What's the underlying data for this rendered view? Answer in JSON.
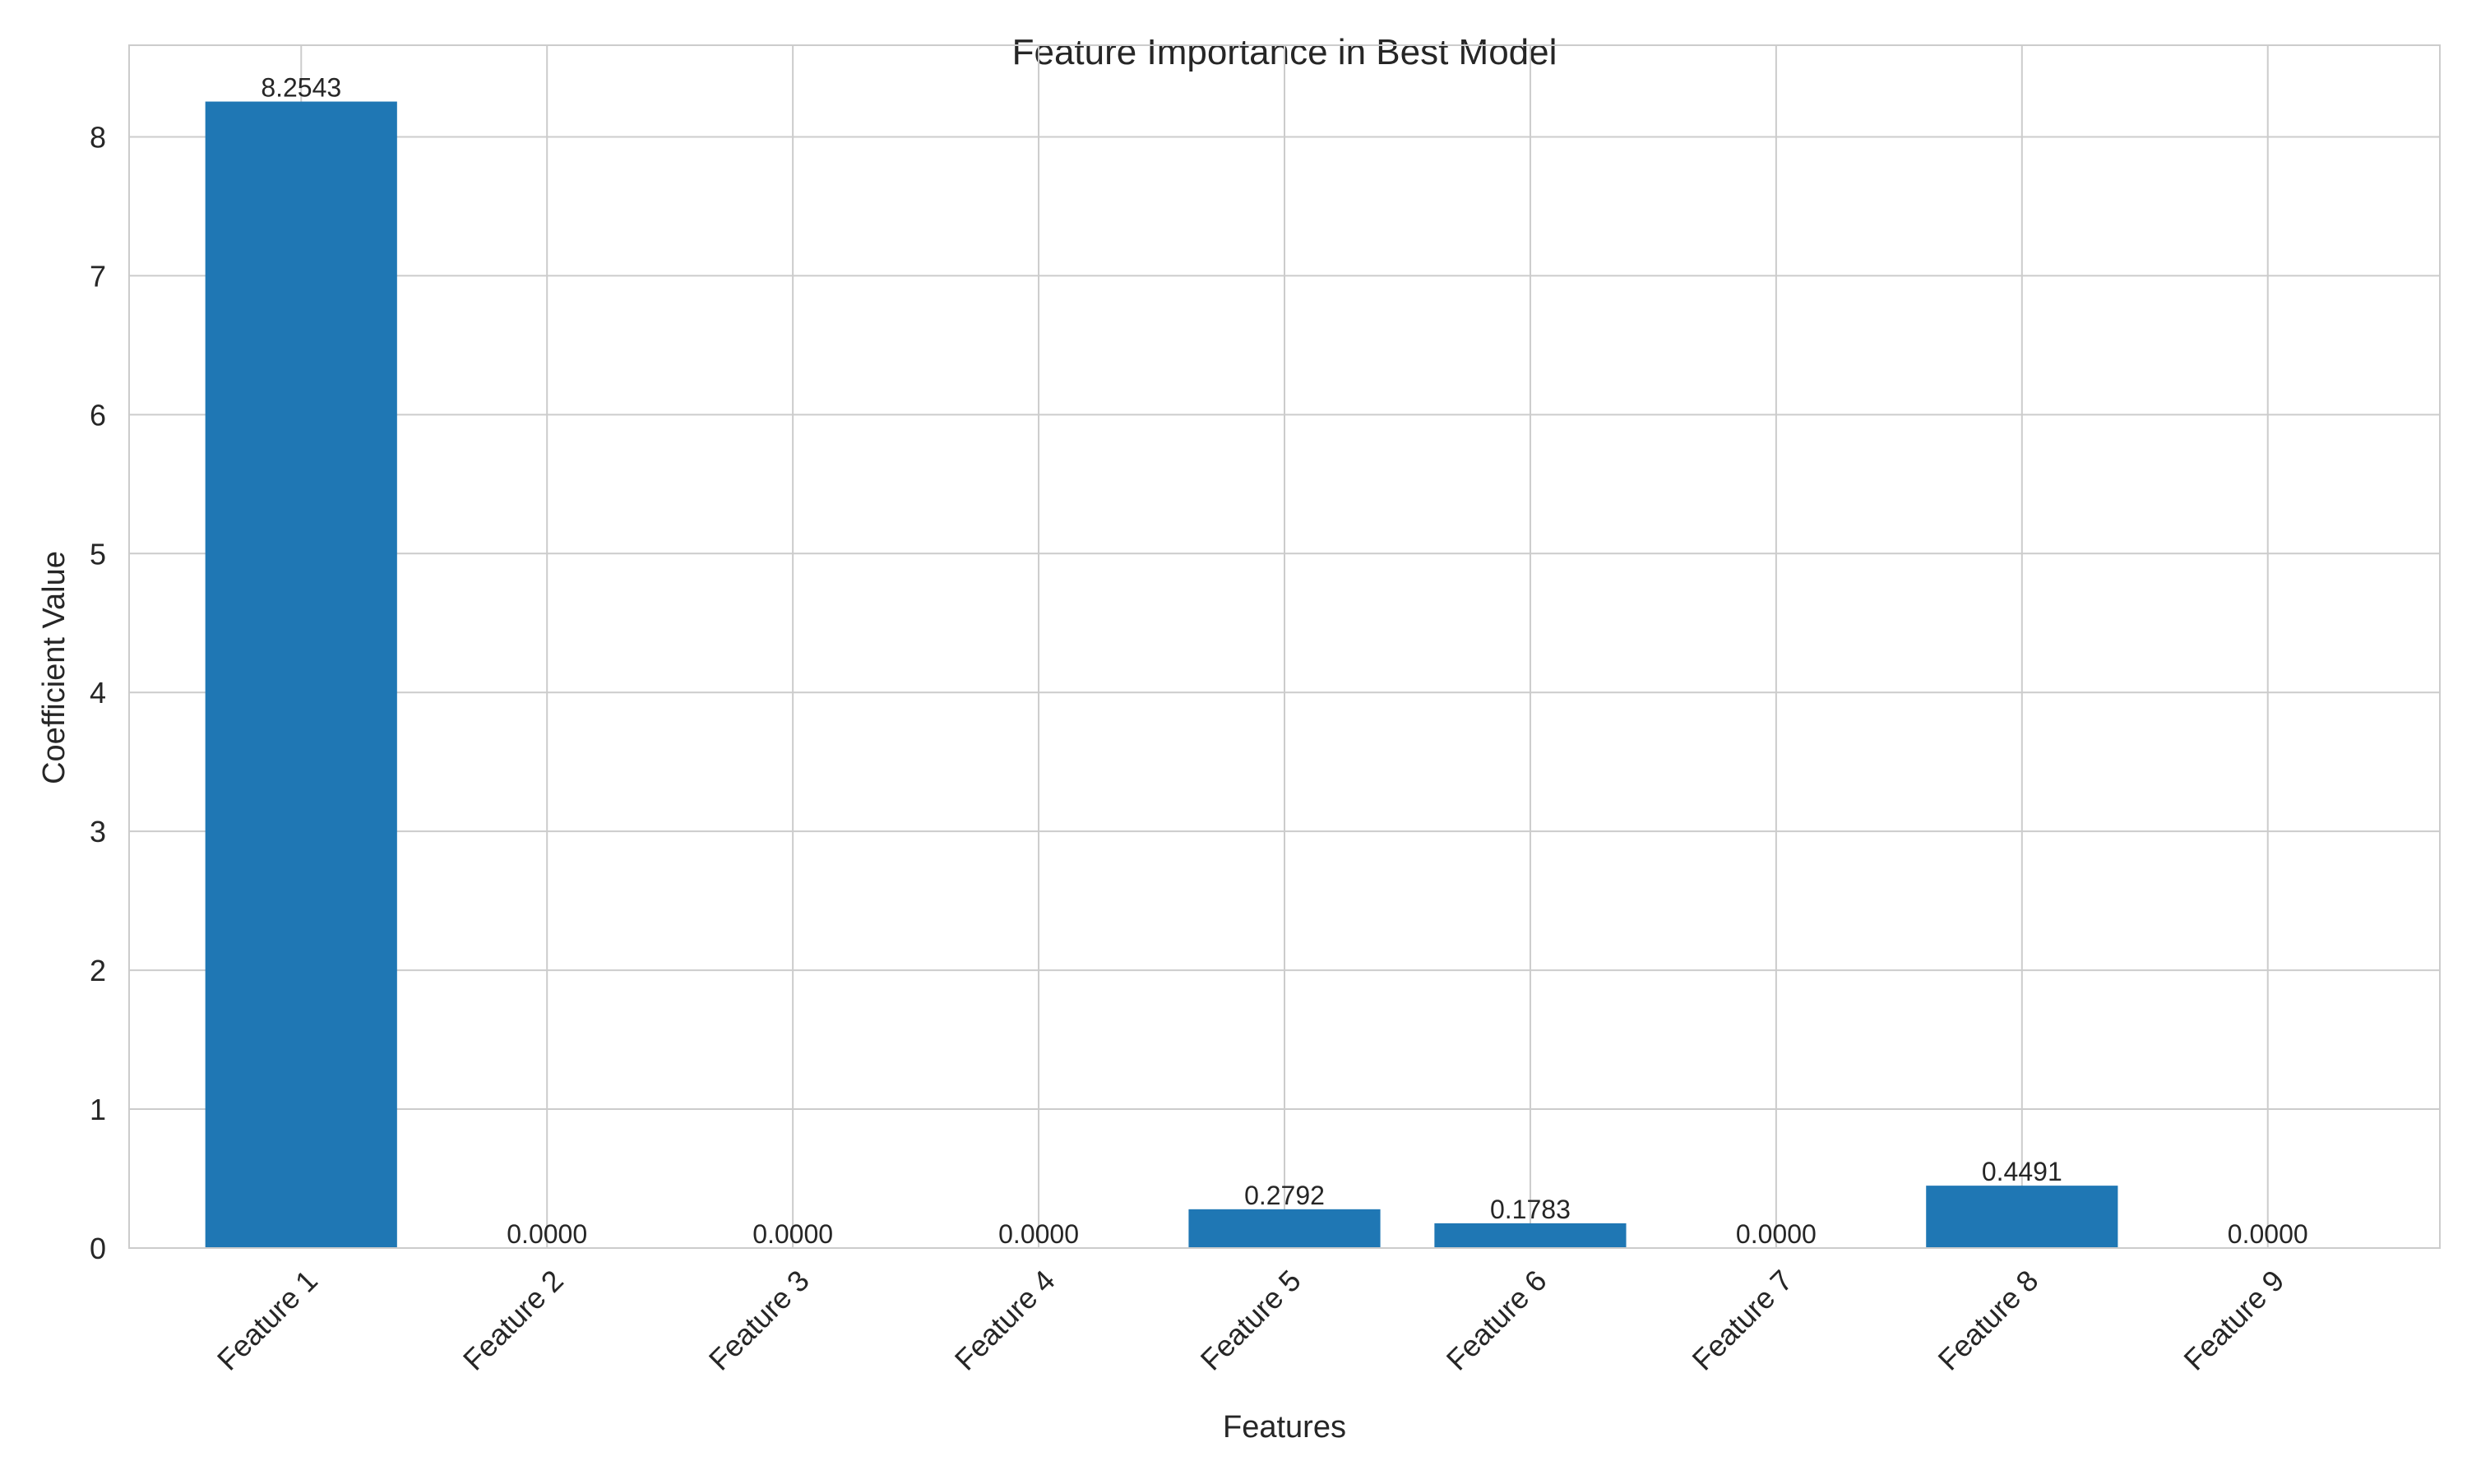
{
  "chart_data": {
    "type": "bar",
    "title": "Feature Importance in Best Model",
    "xlabel": "Features",
    "ylabel": "Coefficient Value",
    "categories": [
      "Feature 1",
      "Feature 2",
      "Feature 3",
      "Feature 4",
      "Feature 5",
      "Feature 6",
      "Feature 7",
      "Feature 8",
      "Feature 9"
    ],
    "values": [
      8.2543,
      0.0,
      0.0,
      0.0,
      0.2792,
      0.1783,
      0.0,
      0.4491,
      0.0
    ],
    "value_labels": [
      "8.2543",
      "0.0000",
      "0.0000",
      "0.0000",
      "0.2792",
      "0.1783",
      "0.0000",
      "0.4491",
      "0.0000"
    ],
    "ylim": [
      0,
      8.66
    ],
    "yticks": [
      0,
      1,
      2,
      3,
      4,
      5,
      6,
      7,
      8
    ],
    "ytick_labels": [
      "0",
      "1",
      "2",
      "3",
      "4",
      "5",
      "6",
      "7",
      "8"
    ],
    "grid": true,
    "bar_color": "#1f77b4",
    "grid_color": "#cccccc"
  }
}
